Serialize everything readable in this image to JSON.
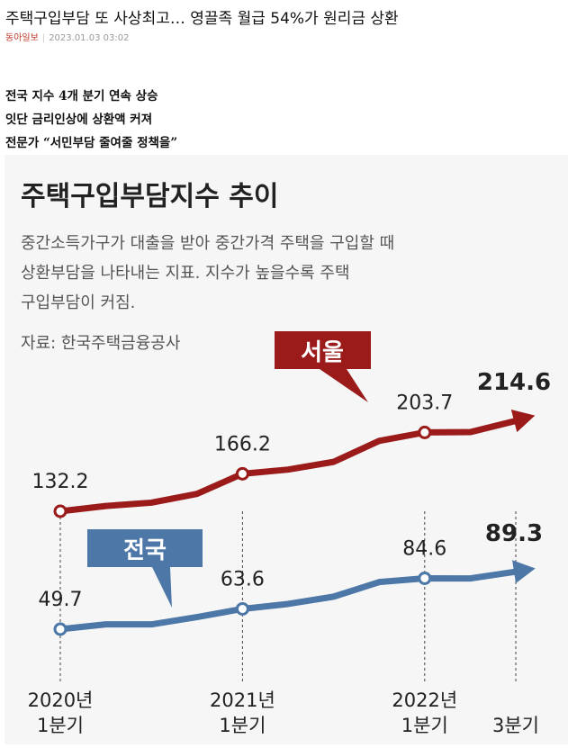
{
  "article": {
    "headline": "주택구입부담 또 사상최고… 영끌족 월급 54%가 원리금 상환",
    "source": "동아일보",
    "datetime": "2023.01.03 03:02",
    "subheads": [
      "전국 지수 4개 분기 연속 상승",
      "잇단 금리인상에 상환액 커져",
      "전문가 “서민부담 줄여줄 정책을”"
    ]
  },
  "infographic": {
    "title": "주택구입부담지수 추이",
    "description": [
      "중간소득가구가 대출을 받아 중간가격 주택을 구입할 때",
      "상환부담을 나타내는 지표. 지수가 높을수록 주택",
      "구입부담이 커짐."
    ],
    "source_note": "자료: 한국주택금융공사"
  },
  "chart_data": {
    "type": "line",
    "x": [
      "2020년 1분기",
      "",
      "",
      "",
      "2021년 1분기",
      "",
      "",
      "",
      "2022년 1분기",
      "",
      "3분기"
    ],
    "x_tick_labels": [
      {
        "line1": "2020년",
        "line2": "1분기"
      },
      {
        "line1": "2021년",
        "line2": "1분기"
      },
      {
        "line1": "2022년",
        "line2": "1분기"
      },
      {
        "line1": "",
        "line2": "3분기"
      }
    ],
    "series": [
      {
        "name": "서울",
        "color": "#9b1b1b",
        "values": [
          132.2,
          137,
          140,
          148,
          166.2,
          170,
          177,
          196,
          203.7,
          204,
          214.6
        ],
        "labels": [
          {
            "i": 0,
            "text": "132.2"
          },
          {
            "i": 4,
            "text": "166.2"
          },
          {
            "i": 8,
            "text": "203.7"
          },
          {
            "i": 10,
            "text": "214.6"
          }
        ]
      },
      {
        "name": "전국",
        "color": "#4d77a7",
        "values": [
          49.7,
          53,
          53,
          58,
          63.6,
          67,
          72,
          82,
          84.6,
          84.5,
          89.3
        ],
        "labels": [
          {
            "i": 0,
            "text": "49.7"
          },
          {
            "i": 4,
            "text": "63.6"
          },
          {
            "i": 8,
            "text": "84.6"
          },
          {
            "i": 10,
            "text": "89.3"
          }
        ]
      }
    ]
  }
}
